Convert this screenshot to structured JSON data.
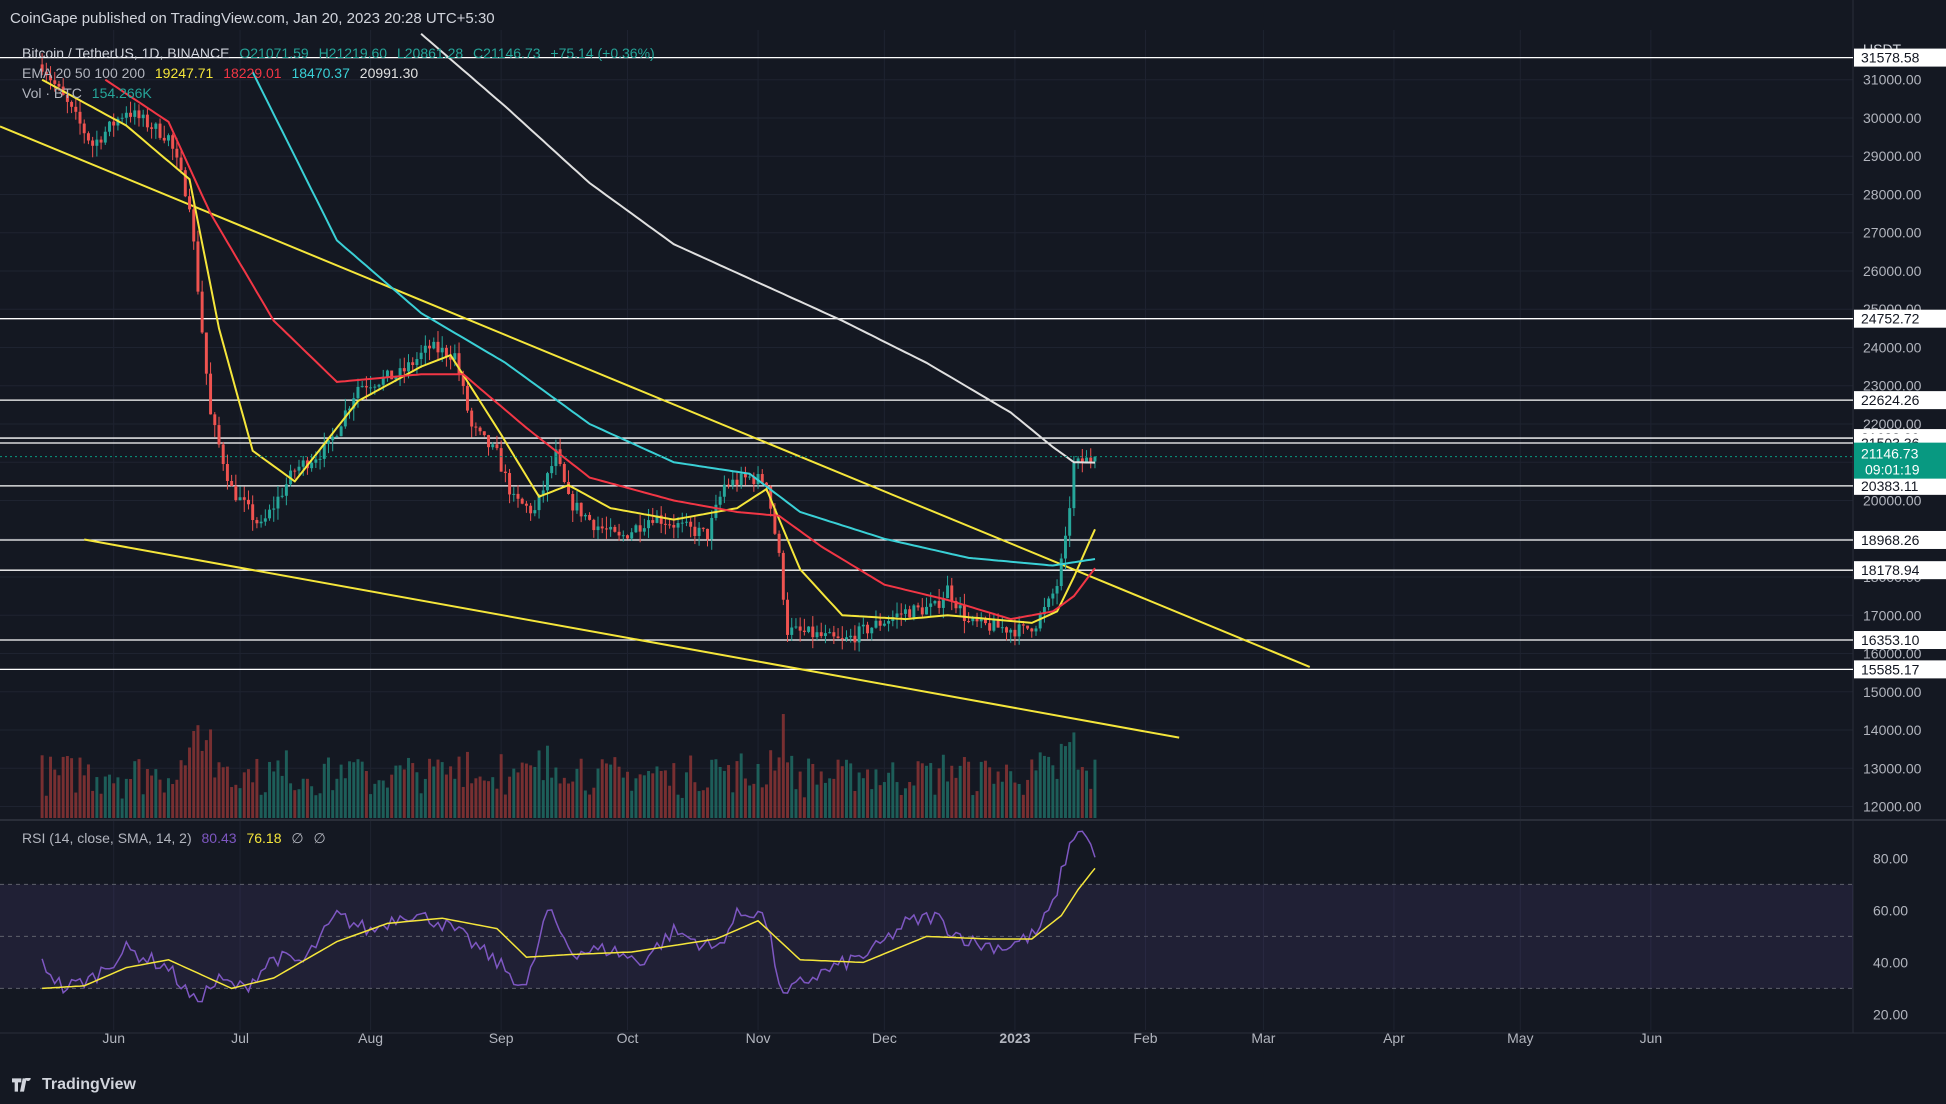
{
  "header": {
    "published": "CoinGape published on TradingView.com, Jan 20, 2023 20:28 UTC+5:30"
  },
  "legend": {
    "symbol": "Bitcoin / TetherUS, 1D, BINANCE",
    "o": "O21071.59",
    "h": "H21219.60",
    "l": "L20861.28",
    "c": "C21146.73",
    "change": "+75.14 (+0.36%)",
    "ema_label": "EMA 20 50 100 200",
    "ema20": "19247.71",
    "ema50": "18229.01",
    "ema100": "18470.37",
    "ema200": "20991.30",
    "vol_label": "Vol · BTC",
    "vol_value": "154.266K",
    "rsi_label": "RSI (14, close, SMA, 14, 2)",
    "rsi_value": "80.43",
    "rsi_sma": "76.18",
    "rsi_extra1": "∅",
    "rsi_extra2": "∅"
  },
  "colors": {
    "background": "#141822",
    "up": "#26a69a",
    "down": "#ef5350",
    "ema20": "#f5e63b",
    "ema50": "#f23645",
    "ema100": "#3ad0d6",
    "ema200": "#e0e0e0",
    "trendline": "#f5e63b",
    "rsi": "#7e57c2",
    "rsi_sma": "#f5e63b",
    "current_price": "#089981"
  },
  "footer": {
    "brand": "TradingView"
  },
  "chart_data": {
    "type": "candlestick",
    "title": "Bitcoin / TetherUS, 1D, BINANCE",
    "currency": "USDT",
    "price_axis": {
      "ylim": [
        11700,
        32300
      ],
      "ticks": [
        12000,
        13000,
        14000,
        15000,
        16000,
        17000,
        18000,
        19000,
        20000,
        21000,
        22000,
        23000,
        24000,
        25000,
        26000,
        27000,
        28000,
        29000,
        30000,
        31000
      ],
      "tick_labels": [
        "12000.00",
        "13000.00",
        "14000.00",
        "15000.00",
        "16000.00",
        "17000.00",
        "18000.00",
        "19000.00",
        "20000.00",
        "21000.00",
        "22000.00",
        "23000.00",
        "24000.00",
        "25000.00",
        "26000.00",
        "27000.00",
        "28000.00",
        "29000.00",
        "30000.00",
        "31000.00"
      ]
    },
    "horizontal_levels": [
      {
        "value": 31578.58,
        "label": "31578.58"
      },
      {
        "value": 24752.72,
        "label": "24752.72"
      },
      {
        "value": 22624.26,
        "label": "22624.26"
      },
      {
        "value": 21632.09,
        "label": "21632.09"
      },
      {
        "value": 21503.36,
        "label": "21503.36"
      },
      {
        "value": 20383.11,
        "label": "20383.11"
      },
      {
        "value": 18968.26,
        "label": "18968.26"
      },
      {
        "value": 18178.94,
        "label": "18178.94"
      },
      {
        "value": 16353.1,
        "label": "16353.10"
      },
      {
        "value": 15585.17,
        "label": "15585.17"
      }
    ],
    "current_price": {
      "value": 21146.73,
      "label": "21146.73",
      "countdown": "09:01:19"
    },
    "x_axis": {
      "labels": [
        "Jun",
        "Jul",
        "Aug",
        "Sep",
        "Oct",
        "Nov",
        "Dec",
        "2023",
        "Feb",
        "Mar",
        "Apr",
        "May",
        "Jun"
      ],
      "label_days": [
        17,
        47,
        78,
        109,
        139,
        170,
        200,
        231,
        262,
        290,
        321,
        351,
        382
      ],
      "last_candle_day": 250,
      "xlim": [
        -10,
        430
      ]
    },
    "trendlines": [
      {
        "from": [
          -10,
          29780
        ],
        "to": [
          301,
          15650
        ]
      },
      {
        "from": [
          10,
          18980
        ],
        "to": [
          270,
          13800
        ]
      }
    ],
    "ohlc_keypoints": [
      [
        0,
        31400
      ],
      [
        12,
        29300
      ],
      [
        20,
        30200
      ],
      [
        30,
        29500
      ],
      [
        35,
        27800
      ],
      [
        40,
        22200
      ],
      [
        45,
        20300
      ],
      [
        52,
        19300
      ],
      [
        60,
        20800
      ],
      [
        68,
        21400
      ],
      [
        75,
        23000
      ],
      [
        85,
        23300
      ],
      [
        92,
        24000
      ],
      [
        98,
        23800
      ],
      [
        102,
        21900
      ],
      [
        108,
        21200
      ],
      [
        112,
        20000
      ],
      [
        117,
        19700
      ],
      [
        122,
        21200
      ],
      [
        125,
        20000
      ],
      [
        131,
        19400
      ],
      [
        137,
        19000
      ],
      [
        145,
        19600
      ],
      [
        152,
        19300
      ],
      [
        158,
        19100
      ],
      [
        162,
        20400
      ],
      [
        168,
        20600
      ],
      [
        172,
        20500
      ],
      [
        175,
        18500
      ],
      [
        177,
        16600
      ],
      [
        183,
        16500
      ],
      [
        190,
        16300
      ],
      [
        197,
        16700
      ],
      [
        205,
        17100
      ],
      [
        212,
        17200
      ],
      [
        215,
        17700
      ],
      [
        220,
        16800
      ],
      [
        226,
        16700
      ],
      [
        233,
        16600
      ],
      [
        236,
        16800
      ],
      [
        239,
        17300
      ],
      [
        241,
        17800
      ],
      [
        243,
        18900
      ],
      [
        245,
        20900
      ],
      [
        247,
        21000
      ],
      [
        250,
        21146.73
      ]
    ],
    "ema_keypoints": {
      "ema20": [
        [
          0,
          31000
        ],
        [
          20,
          29800
        ],
        [
          35,
          28400
        ],
        [
          42,
          24500
        ],
        [
          50,
          21300
        ],
        [
          60,
          20500
        ],
        [
          75,
          22600
        ],
        [
          90,
          23500
        ],
        [
          97,
          23800
        ],
        [
          108,
          21900
        ],
        [
          118,
          20100
        ],
        [
          125,
          20400
        ],
        [
          135,
          19800
        ],
        [
          150,
          19500
        ],
        [
          165,
          19800
        ],
        [
          172,
          20300
        ],
        [
          180,
          18200
        ],
        [
          190,
          17000
        ],
        [
          205,
          16900
        ],
        [
          215,
          17000
        ],
        [
          225,
          16900
        ],
        [
          235,
          16800
        ],
        [
          241,
          17100
        ],
        [
          245,
          18000
        ],
        [
          250,
          19247.71
        ]
      ],
      "ema50": [
        [
          15,
          31000
        ],
        [
          30,
          29900
        ],
        [
          40,
          27500
        ],
        [
          55,
          24700
        ],
        [
          70,
          23100
        ],
        [
          90,
          23300
        ],
        [
          100,
          23300
        ],
        [
          115,
          21900
        ],
        [
          130,
          20600
        ],
        [
          150,
          20000
        ],
        [
          165,
          19700
        ],
        [
          175,
          19600
        ],
        [
          185,
          18800
        ],
        [
          200,
          17800
        ],
        [
          215,
          17400
        ],
        [
          230,
          16900
        ],
        [
          240,
          17100
        ],
        [
          245,
          17500
        ],
        [
          250,
          18229.01
        ]
      ],
      "ema100": [
        [
          50,
          31200
        ],
        [
          70,
          26800
        ],
        [
          90,
          24900
        ],
        [
          110,
          23600
        ],
        [
          130,
          22000
        ],
        [
          150,
          21000
        ],
        [
          168,
          20700
        ],
        [
          180,
          19700
        ],
        [
          200,
          19000
        ],
        [
          220,
          18500
        ],
        [
          240,
          18300
        ],
        [
          250,
          18470.37
        ]
      ],
      "ema200": [
        [
          90,
          32200
        ],
        [
          110,
          30300
        ],
        [
          130,
          28300
        ],
        [
          150,
          26700
        ],
        [
          170,
          25700
        ],
        [
          190,
          24700
        ],
        [
          210,
          23600
        ],
        [
          230,
          22300
        ],
        [
          240,
          21400
        ],
        [
          245,
          21000
        ],
        [
          250,
          20991.3
        ]
      ]
    },
    "volume": {
      "label": "Vol · BTC",
      "last": "154.266K"
    },
    "rsi": {
      "label": "RSI (14, close, SMA, 14, 2)",
      "ylim": [
        14,
        94
      ],
      "ticks": [
        20,
        40,
        60,
        80
      ],
      "tick_labels": [
        "20.00",
        "40.00",
        "60.00",
        "80.00"
      ],
      "band": [
        30,
        70
      ],
      "mid": 50,
      "keypoints": [
        [
          0,
          40
        ],
        [
          5,
          30
        ],
        [
          12,
          34
        ],
        [
          20,
          45
        ],
        [
          30,
          38
        ],
        [
          36,
          25
        ],
        [
          42,
          33
        ],
        [
          48,
          30
        ],
        [
          55,
          42
        ],
        [
          62,
          40
        ],
        [
          70,
          58
        ],
        [
          78,
          52
        ],
        [
          86,
          59
        ],
        [
          94,
          56
        ],
        [
          100,
          50
        ],
        [
          108,
          40
        ],
        [
          115,
          30
        ],
        [
          120,
          60
        ],
        [
          126,
          44
        ],
        [
          135,
          45
        ],
        [
          142,
          40
        ],
        [
          150,
          52
        ],
        [
          160,
          45
        ],
        [
          165,
          58
        ],
        [
          170,
          60
        ],
        [
          172,
          55
        ],
        [
          176,
          26
        ],
        [
          180,
          32
        ],
        [
          188,
          38
        ],
        [
          197,
          44
        ],
        [
          205,
          55
        ],
        [
          212,
          58
        ],
        [
          216,
          52
        ],
        [
          222,
          47
        ],
        [
          229,
          46
        ],
        [
          236,
          51
        ],
        [
          240,
          62
        ],
        [
          243,
          80
        ],
        [
          246,
          92
        ],
        [
          248,
          88
        ],
        [
          250,
          80.43
        ]
      ],
      "sma_keypoints": [
        [
          0,
          30
        ],
        [
          10,
          31
        ],
        [
          20,
          38
        ],
        [
          30,
          41
        ],
        [
          45,
          30
        ],
        [
          55,
          34
        ],
        [
          70,
          48
        ],
        [
          82,
          55
        ],
        [
          95,
          57
        ],
        [
          108,
          53
        ],
        [
          115,
          42
        ],
        [
          125,
          43
        ],
        [
          140,
          44
        ],
        [
          160,
          49
        ],
        [
          170,
          56
        ],
        [
          180,
          41
        ],
        [
          195,
          40
        ],
        [
          210,
          50
        ],
        [
          225,
          49
        ],
        [
          235,
          49
        ],
        [
          242,
          58
        ],
        [
          246,
          68
        ],
        [
          250,
          76.18
        ]
      ]
    }
  }
}
